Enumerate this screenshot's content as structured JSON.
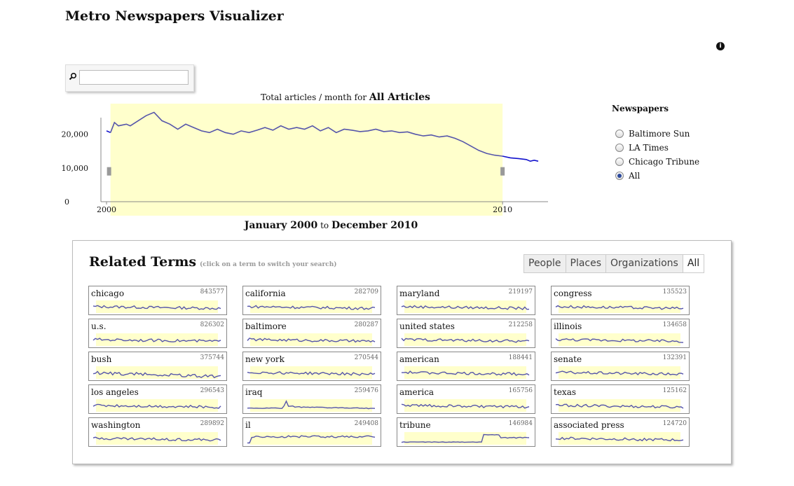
{
  "app": {
    "title": "Metro Newspapers Visualizer",
    "info_icon": "info-icon"
  },
  "search": {
    "value": "",
    "placeholder": "",
    "icon": "search-icon"
  },
  "chart_caption": {
    "prefix": "Total articles / month for",
    "subject": "All Articles"
  },
  "chart_data": {
    "type": "line",
    "title": "Total articles / month for All Articles",
    "x_ticks": [
      "2000",
      "2010"
    ],
    "y_ticks": [
      "20,000",
      "10,000",
      "0"
    ],
    "ylim": [
      0,
      27000
    ],
    "xlim": [
      2000,
      2010.9
    ],
    "series": [
      {
        "color": "#5555aa",
        "points": [
          [
            2000.0,
            21000
          ],
          [
            2000.1,
            20500
          ],
          [
            2000.2,
            23500
          ],
          [
            2000.3,
            22500
          ],
          [
            2000.5,
            23000
          ],
          [
            2000.6,
            22500
          ],
          [
            2000.8,
            24000
          ],
          [
            2001.0,
            25500
          ],
          [
            2001.2,
            26500
          ],
          [
            2001.4,
            24000
          ],
          [
            2001.6,
            23000
          ],
          [
            2001.8,
            21500
          ],
          [
            2002.0,
            23000
          ],
          [
            2002.2,
            22000
          ],
          [
            2002.4,
            21000
          ],
          [
            2002.6,
            20500
          ],
          [
            2002.8,
            21500
          ],
          [
            2003.0,
            20500
          ],
          [
            2003.2,
            20000
          ],
          [
            2003.4,
            21000
          ],
          [
            2003.6,
            20500
          ],
          [
            2003.8,
            21200
          ],
          [
            2004.0,
            22000
          ],
          [
            2004.2,
            21200
          ],
          [
            2004.4,
            22500
          ],
          [
            2004.6,
            21500
          ],
          [
            2004.8,
            22000
          ],
          [
            2005.0,
            21500
          ],
          [
            2005.2,
            22500
          ],
          [
            2005.4,
            21000
          ],
          [
            2005.6,
            22000
          ],
          [
            2005.8,
            20500
          ],
          [
            2006.0,
            21500
          ],
          [
            2006.2,
            21200
          ],
          [
            2006.4,
            20800
          ],
          [
            2006.6,
            21000
          ],
          [
            2006.8,
            21500
          ],
          [
            2007.0,
            20800
          ],
          [
            2007.2,
            21000
          ],
          [
            2007.4,
            20500
          ],
          [
            2007.6,
            20700
          ],
          [
            2007.8,
            20000
          ],
          [
            2008.0,
            19500
          ],
          [
            2008.2,
            19800
          ],
          [
            2008.4,
            19200
          ],
          [
            2008.6,
            19500
          ],
          [
            2008.8,
            18800
          ],
          [
            2009.0,
            17800
          ],
          [
            2009.2,
            16500
          ],
          [
            2009.4,
            15200
          ],
          [
            2009.6,
            14300
          ],
          [
            2009.8,
            13800
          ],
          [
            2010.0,
            13500
          ],
          [
            2010.2,
            13000
          ],
          [
            2010.4,
            12800
          ],
          [
            2010.6,
            12500
          ],
          [
            2010.7,
            12000
          ],
          [
            2010.8,
            12300
          ],
          [
            2010.9,
            12000
          ]
        ]
      }
    ],
    "selection": {
      "from": 2000.1,
      "to": 2010.0
    },
    "grid": false
  },
  "range": {
    "start": "January 2000",
    "separator": "to",
    "end": "December 2010"
  },
  "newspapers": {
    "title": "Newspapers",
    "options": [
      {
        "label": "Baltimore Sun",
        "selected": false
      },
      {
        "label": "LA Times",
        "selected": false
      },
      {
        "label": "Chicago Tribune",
        "selected": false
      },
      {
        "label": "All",
        "selected": true
      }
    ]
  },
  "related": {
    "title": "Related Terms",
    "hint": "(click on a term to switch your search)",
    "filters": [
      {
        "label": "People",
        "active": false
      },
      {
        "label": "Places",
        "active": false
      },
      {
        "label": "Organizations",
        "active": false
      },
      {
        "label": "All",
        "active": true
      }
    ],
    "terms": [
      {
        "name": "chicago",
        "count": "843577"
      },
      {
        "name": "california",
        "count": "282709"
      },
      {
        "name": "maryland",
        "count": "219197"
      },
      {
        "name": "congress",
        "count": "135523"
      },
      {
        "name": "u.s.",
        "count": "826302"
      },
      {
        "name": "baltimore",
        "count": "280287"
      },
      {
        "name": "united states",
        "count": "212258"
      },
      {
        "name": "illinois",
        "count": "134658"
      },
      {
        "name": "bush",
        "count": "375744"
      },
      {
        "name": "new york",
        "count": "270544"
      },
      {
        "name": "american",
        "count": "188441"
      },
      {
        "name": "senate",
        "count": "132391"
      },
      {
        "name": "los angeles",
        "count": "296543"
      },
      {
        "name": "iraq",
        "count": "259476"
      },
      {
        "name": "america",
        "count": "165756"
      },
      {
        "name": "texas",
        "count": "125162"
      },
      {
        "name": "washington",
        "count": "289892"
      },
      {
        "name": "il",
        "count": "249408"
      },
      {
        "name": "tribune",
        "count": "146984"
      },
      {
        "name": "associated press",
        "count": "124720"
      }
    ]
  },
  "colors": {
    "selection": "#ffffcc",
    "line": "#5555aa",
    "line_outside": "#1111cc"
  }
}
